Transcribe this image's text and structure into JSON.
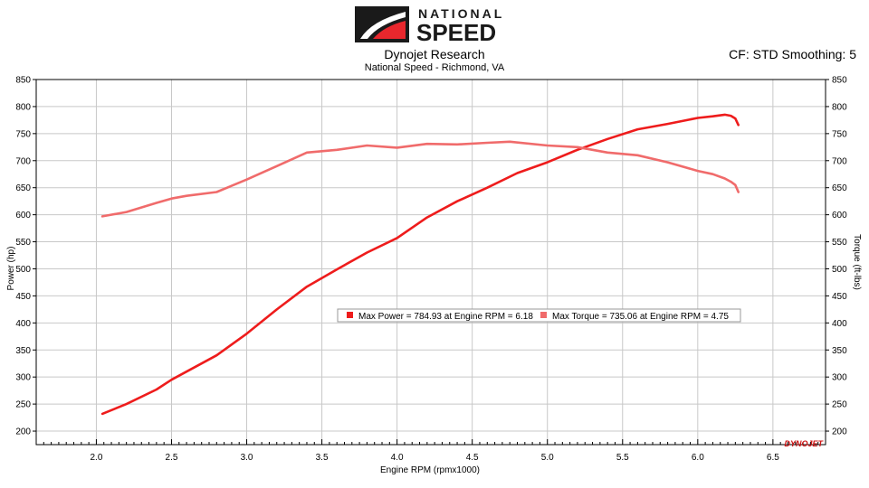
{
  "header": {
    "logo_line1": "NATIONAL",
    "logo_line2": "SPEED",
    "title": "Dynojet Research",
    "subtitle": "National Speed - Richmond, VA",
    "cf_note": "CF: STD Smoothing: 5"
  },
  "watermark": "DYNOJET",
  "colors": {
    "power": "#ee1c1c",
    "torque": "#f06b6b",
    "grid": "#c8c8c8",
    "logo_red": "#e8272d",
    "logo_black": "#1a1a1a"
  },
  "chart_data": {
    "type": "line",
    "title": "Dynojet Research",
    "subtitle": "National Speed - Richmond, VA",
    "xlabel": "Engine RPM (rpmx1000)",
    "ylabel_left": "Power (hp)",
    "ylabel_right": "Torque (ft-lbs)",
    "xlim": [
      1.6,
      6.85
    ],
    "ylim": [
      175,
      850
    ],
    "x_ticks": [
      2.0,
      2.5,
      3.0,
      3.5,
      4.0,
      4.5,
      5.0,
      5.5,
      6.0,
      6.5
    ],
    "x_tick_labels": [
      "2.0",
      "2.5",
      "3.0",
      "3.5",
      "4.0",
      "4.5",
      "5.0",
      "5.5",
      "6.0",
      "6.5"
    ],
    "y_ticks": [
      200,
      250,
      300,
      350,
      400,
      450,
      500,
      550,
      600,
      650,
      700,
      750,
      800,
      850
    ],
    "y_tick_labels": [
      "200",
      "250",
      "300",
      "350",
      "400",
      "450",
      "500",
      "550",
      "600",
      "650",
      "700",
      "750",
      "800",
      "850"
    ],
    "grid": true,
    "legend_position": "center",
    "series": [
      {
        "name": "Power",
        "axis": "left",
        "x": [
          2.04,
          2.2,
          2.4,
          2.5,
          2.6,
          2.8,
          3.0,
          3.2,
          3.4,
          3.6,
          3.8,
          4.0,
          4.2,
          4.4,
          4.6,
          4.8,
          5.0,
          5.2,
          5.4,
          5.6,
          5.8,
          6.0,
          6.1,
          6.18,
          6.22,
          6.25,
          6.27
        ],
        "values": [
          232,
          250,
          277,
          295,
          310,
          340,
          380,
          425,
          467,
          499,
          530,
          557,
          595,
          625,
          650,
          677,
          697,
          720,
          740,
          758,
          768,
          779,
          782,
          785,
          783,
          778,
          766
        ]
      },
      {
        "name": "Torque",
        "axis": "right",
        "x": [
          2.04,
          2.2,
          2.4,
          2.5,
          2.6,
          2.8,
          3.0,
          3.2,
          3.4,
          3.6,
          3.8,
          4.0,
          4.2,
          4.4,
          4.6,
          4.75,
          5.0,
          5.2,
          5.4,
          5.6,
          5.8,
          6.0,
          6.1,
          6.18,
          6.22,
          6.25,
          6.27
        ],
        "values": [
          597,
          605,
          622,
          630,
          635,
          642,
          665,
          690,
          715,
          720,
          728,
          724,
          731,
          730,
          733,
          735,
          728,
          725,
          715,
          710,
          697,
          681,
          675,
          667,
          661,
          655,
          642
        ]
      }
    ],
    "legend": [
      {
        "series": "Power",
        "text": "Max Power = 784.93 at Engine RPM = 6.18"
      },
      {
        "series": "Torque",
        "text": "Max Torque = 735.06 at Engine RPM = 4.75"
      }
    ]
  }
}
